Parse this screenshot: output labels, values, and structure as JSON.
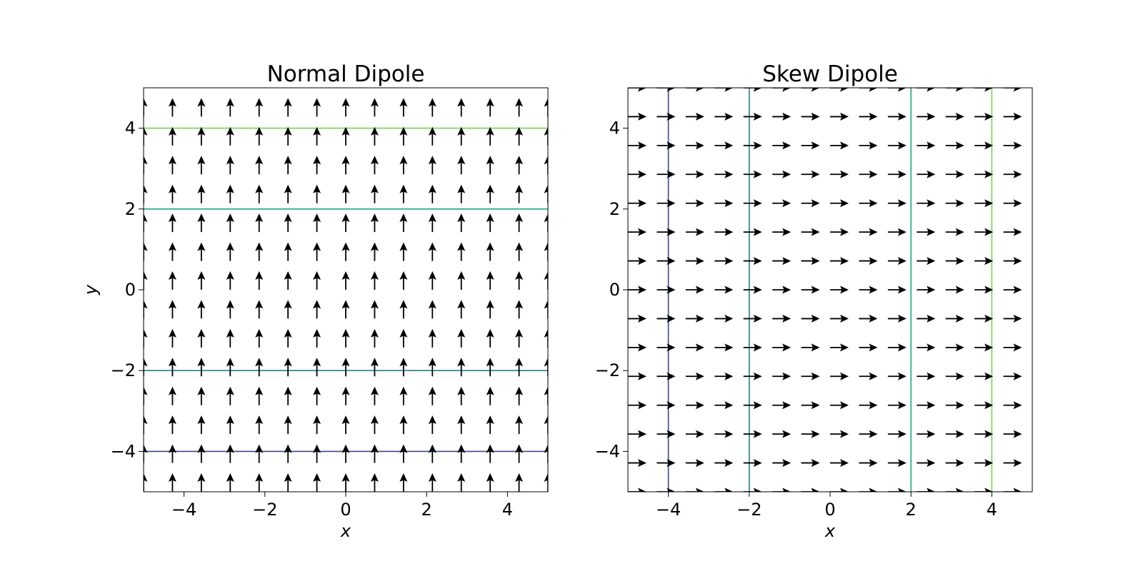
{
  "chart_data": [
    {
      "type": "quiver",
      "title": "Normal Dipole",
      "xlabel": "x",
      "ylabel": "y",
      "xlim": [
        -5,
        5
      ],
      "ylim": [
        -5,
        5
      ],
      "xticks": [
        -4,
        -2,
        0,
        2,
        4
      ],
      "yticks": [
        -4,
        -2,
        0,
        2,
        4
      ],
      "xtick_labels": [
        "−4",
        "−2",
        "0",
        "2",
        "4"
      ],
      "ytick_labels": [
        "−4",
        "−2",
        "0",
        "2",
        "4"
      ],
      "grid": false,
      "field": {
        "direction": "up",
        "vector": [
          0,
          1
        ],
        "grid_points_x": 15,
        "grid_points_y": 15,
        "range": [
          -5,
          5
        ]
      },
      "contours": [
        {
          "orientation": "horizontal",
          "value": 4,
          "color": "#7ad151"
        },
        {
          "orientation": "horizontal",
          "value": 2,
          "color": "#22a884"
        },
        {
          "orientation": "horizontal",
          "value": -2,
          "color": "#2a788e"
        },
        {
          "orientation": "horizontal",
          "value": -4,
          "color": "#414487"
        }
      ]
    },
    {
      "type": "quiver",
      "title": "Skew Dipole",
      "xlabel": "x",
      "ylabel": "",
      "xlim": [
        -5,
        5
      ],
      "ylim": [
        -5,
        5
      ],
      "xticks": [
        -4,
        -2,
        0,
        2,
        4
      ],
      "yticks": [
        -4,
        -2,
        0,
        2,
        4
      ],
      "xtick_labels": [
        "−4",
        "−2",
        "0",
        "2",
        "4"
      ],
      "ytick_labels": [
        "−4",
        "−2",
        "0",
        "2",
        "4"
      ],
      "grid": false,
      "field": {
        "direction": "right",
        "vector": [
          1,
          0
        ],
        "grid_points_x": 15,
        "grid_points_y": 15,
        "range": [
          -5,
          5
        ]
      },
      "contours": [
        {
          "orientation": "vertical",
          "value": -4,
          "color": "#414487"
        },
        {
          "orientation": "vertical",
          "value": -2,
          "color": "#2a788e"
        },
        {
          "orientation": "vertical",
          "value": 2,
          "color": "#22a884"
        },
        {
          "orientation": "vertical",
          "value": 4,
          "color": "#7ad151"
        }
      ]
    }
  ]
}
